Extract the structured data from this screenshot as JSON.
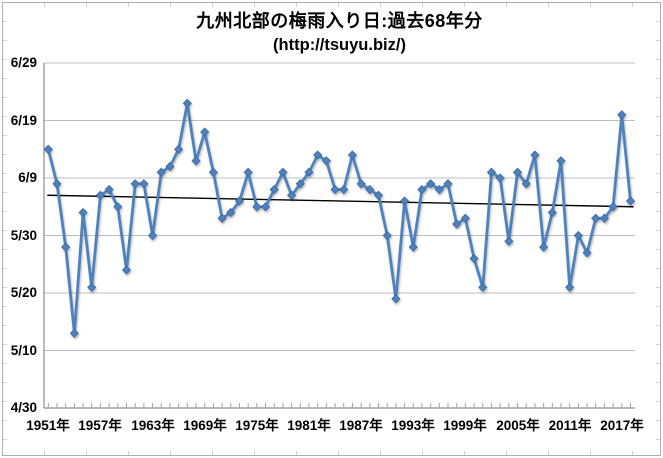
{
  "title": {
    "line1": "九州北部の梅雨入り日:過去68年分",
    "line2": "(http://tsuyu.biz/)"
  },
  "chart_data": {
    "type": "line",
    "title": "九州北部の梅雨入り日:過去68年分",
    "subtitle": "(http://tsuyu.biz/)",
    "ylim": [
      "4/30",
      "6/29"
    ],
    "grid": "horizontal",
    "legend": "none",
    "marker": "diamond",
    "ytick_labels": [
      "6/29",
      "6/19",
      "6/9",
      "5/30",
      "5/20",
      "5/10",
      "4/30"
    ],
    "xtick_labels": [
      "1951年",
      "1957年",
      "1963年",
      "1969年",
      "1975年",
      "1981年",
      "1987年",
      "1993年",
      "1999年",
      "2005年",
      "2011年",
      "2017年"
    ],
    "years": [
      1951,
      1952,
      1953,
      1954,
      1955,
      1956,
      1957,
      1958,
      1959,
      1960,
      1961,
      1962,
      1963,
      1964,
      1965,
      1966,
      1967,
      1968,
      1969,
      1970,
      1971,
      1972,
      1973,
      1974,
      1975,
      1976,
      1977,
      1978,
      1979,
      1980,
      1981,
      1982,
      1983,
      1984,
      1985,
      1986,
      1987,
      1988,
      1989,
      1990,
      1991,
      1992,
      1993,
      1994,
      1995,
      1996,
      1997,
      1998,
      1999,
      2000,
      2001,
      2002,
      2003,
      2004,
      2005,
      2006,
      2007,
      2008,
      2009,
      2010,
      2011,
      2012,
      2013,
      2014,
      2015,
      2016,
      2017,
      2018
    ],
    "dates": [
      "6/14",
      "6/8",
      "5/28",
      "5/13",
      "6/3",
      "5/21",
      "6/6",
      "6/7",
      "6/4",
      "5/24",
      "6/8",
      "6/8",
      "5/30",
      "6/10",
      "6/11",
      "6/14",
      "6/22",
      "6/12",
      "6/17",
      "6/10",
      "6/2",
      "6/3",
      "6/5",
      "6/10",
      "6/4",
      "6/4",
      "6/7",
      "6/10",
      "6/6",
      "6/8",
      "6/10",
      "6/13",
      "6/12",
      "6/7",
      "6/7",
      "6/13",
      "6/8",
      "6/7",
      "6/6",
      "5/30",
      "5/19",
      "6/5",
      "5/28",
      "6/7",
      "6/8",
      "6/7",
      "6/8",
      "6/1",
      "6/2",
      "5/26",
      "5/21",
      "6/10",
      "6/9",
      "5/29",
      "6/10",
      "6/8",
      "6/13",
      "5/28",
      "6/3",
      "6/12",
      "5/21",
      "5/30",
      "5/27",
      "6/2",
      "6/2",
      "6/4",
      "6/20",
      "6/5"
    ],
    "trend": {
      "start_date": "6/6",
      "end_date": "6/4"
    },
    "colors": {
      "series": "#4F81BD",
      "series_edge": "#38679E",
      "trend": "#000000",
      "gridline": "#BFBFBF",
      "axis": "#8C8C8C",
      "tick": "#A3A3A3"
    }
  }
}
